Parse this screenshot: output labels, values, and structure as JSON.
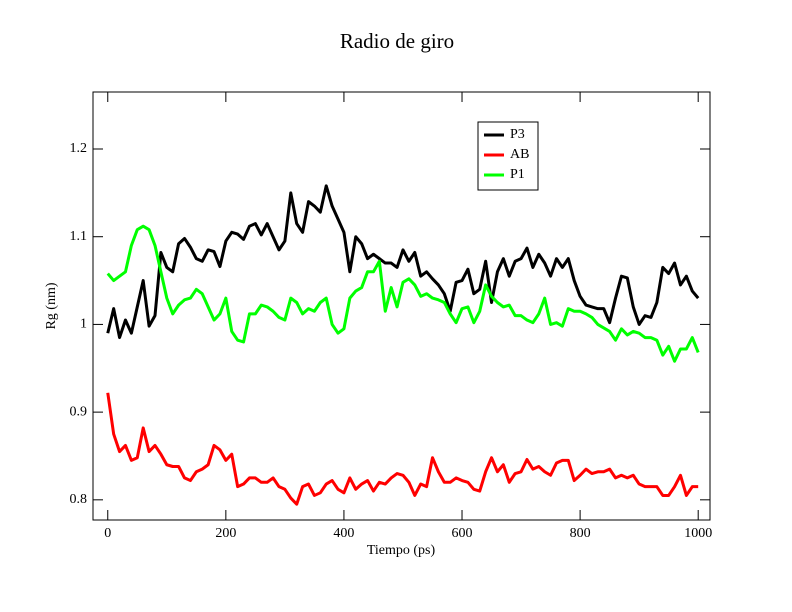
{
  "chart_data": {
    "type": "line",
    "title": "Radio de giro",
    "x_label": "Tiempo (ps)",
    "y_label": "Rg (nm)",
    "x": [
      0,
      10,
      20,
      30,
      40,
      50,
      60,
      70,
      80,
      90,
      100,
      110,
      120,
      130,
      140,
      150,
      160,
      170,
      180,
      190,
      200,
      210,
      220,
      230,
      240,
      250,
      260,
      270,
      280,
      290,
      300,
      310,
      320,
      330,
      340,
      350,
      360,
      370,
      380,
      390,
      400,
      410,
      420,
      430,
      440,
      450,
      460,
      470,
      480,
      490,
      500,
      510,
      520,
      530,
      540,
      550,
      560,
      570,
      580,
      590,
      600,
      610,
      620,
      630,
      640,
      650,
      660,
      670,
      680,
      690,
      700,
      710,
      720,
      730,
      740,
      750,
      760,
      770,
      780,
      790,
      800,
      810,
      820,
      830,
      840,
      850,
      860,
      870,
      880,
      890,
      900,
      910,
      920,
      930,
      940,
      950,
      960,
      970,
      980,
      990,
      1000
    ],
    "series": [
      {
        "name": "P3",
        "color": "#000000",
        "values": [
          0.99,
          1.018,
          0.985,
          1.005,
          0.99,
          1.02,
          1.05,
          0.998,
          1.01,
          1.082,
          1.065,
          1.06,
          1.092,
          1.098,
          1.088,
          1.075,
          1.072,
          1.085,
          1.083,
          1.066,
          1.095,
          1.105,
          1.103,
          1.097,
          1.112,
          1.115,
          1.102,
          1.115,
          1.1,
          1.085,
          1.095,
          1.15,
          1.115,
          1.105,
          1.14,
          1.135,
          1.128,
          1.158,
          1.135,
          1.12,
          1.105,
          1.06,
          1.1,
          1.092,
          1.075,
          1.08,
          1.075,
          1.07,
          1.07,
          1.065,
          1.085,
          1.072,
          1.082,
          1.055,
          1.06,
          1.052,
          1.045,
          1.035,
          1.015,
          1.048,
          1.05,
          1.063,
          1.035,
          1.04,
          1.072,
          1.025,
          1.06,
          1.075,
          1.055,
          1.072,
          1.075,
          1.087,
          1.065,
          1.08,
          1.07,
          1.055,
          1.075,
          1.065,
          1.075,
          1.05,
          1.032,
          1.022,
          1.02,
          1.018,
          1.018,
          1.002,
          1.03,
          1.055,
          1.053,
          1.02,
          1.0,
          1.01,
          1.008,
          1.025,
          1.065,
          1.058,
          1.07,
          1.045,
          1.055,
          1.038,
          1.03
        ]
      },
      {
        "name": "AB",
        "color": "#ff0000",
        "values": [
          0.922,
          0.875,
          0.855,
          0.862,
          0.845,
          0.848,
          0.882,
          0.855,
          0.862,
          0.852,
          0.84,
          0.838,
          0.838,
          0.825,
          0.822,
          0.832,
          0.835,
          0.84,
          0.862,
          0.857,
          0.845,
          0.852,
          0.815,
          0.818,
          0.825,
          0.825,
          0.82,
          0.82,
          0.825,
          0.815,
          0.812,
          0.802,
          0.795,
          0.815,
          0.818,
          0.805,
          0.808,
          0.818,
          0.822,
          0.812,
          0.808,
          0.825,
          0.812,
          0.818,
          0.822,
          0.81,
          0.82,
          0.818,
          0.825,
          0.83,
          0.828,
          0.82,
          0.805,
          0.818,
          0.815,
          0.848,
          0.832,
          0.82,
          0.82,
          0.825,
          0.822,
          0.82,
          0.812,
          0.81,
          0.832,
          0.848,
          0.832,
          0.84,
          0.82,
          0.83,
          0.832,
          0.846,
          0.835,
          0.838,
          0.832,
          0.828,
          0.842,
          0.845,
          0.845,
          0.822,
          0.828,
          0.835,
          0.83,
          0.832,
          0.832,
          0.835,
          0.825,
          0.828,
          0.825,
          0.828,
          0.818,
          0.815,
          0.815,
          0.815,
          0.805,
          0.805,
          0.815,
          0.828,
          0.805,
          0.815,
          0.815
        ]
      },
      {
        "name": "P1",
        "color": "#00ff00",
        "values": [
          1.058,
          1.05,
          1.055,
          1.06,
          1.09,
          1.108,
          1.112,
          1.108,
          1.09,
          1.06,
          1.03,
          1.012,
          1.022,
          1.028,
          1.03,
          1.04,
          1.035,
          1.02,
          1.005,
          1.012,
          1.03,
          0.992,
          0.982,
          0.98,
          1.012,
          1.012,
          1.022,
          1.02,
          1.015,
          1.008,
          1.005,
          1.03,
          1.025,
          1.012,
          1.018,
          1.015,
          1.025,
          1.03,
          1.0,
          0.99,
          0.995,
          1.03,
          1.038,
          1.042,
          1.06,
          1.06,
          1.072,
          1.015,
          1.042,
          1.02,
          1.048,
          1.052,
          1.045,
          1.032,
          1.035,
          1.03,
          1.028,
          1.025,
          1.012,
          1.002,
          1.018,
          1.02,
          1.002,
          1.015,
          1.045,
          1.032,
          1.025,
          1.02,
          1.022,
          1.01,
          1.01,
          1.005,
          1.002,
          1.012,
          1.03,
          1.0,
          1.002,
          0.998,
          1.018,
          1.015,
          1.015,
          1.012,
          1.008,
          1.0,
          0.996,
          0.992,
          0.982,
          0.995,
          0.988,
          0.992,
          0.99,
          0.985,
          0.985,
          0.982,
          0.965,
          0.975,
          0.958,
          0.972,
          0.972,
          0.985,
          0.968
        ]
      }
    ],
    "xlim": [
      -25,
      1020
    ],
    "ylim": [
      0.777,
      1.265
    ],
    "xticks": [
      0,
      200,
      400,
      600,
      800,
      1000
    ],
    "yticks": [
      0.8,
      0.9,
      1,
      1.1,
      1.2
    ],
    "grid": false
  }
}
